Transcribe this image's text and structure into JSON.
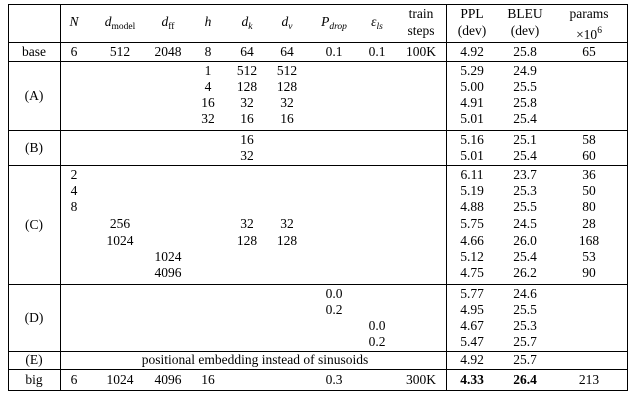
{
  "header": {
    "line1": [
      "",
      "N",
      "d_model",
      "d_ff",
      "h",
      "d_k",
      "d_v",
      "P_drop",
      "ε_ls",
      "train",
      "PPL",
      "BLEU",
      "params"
    ],
    "line2": {
      "train": "steps",
      "ppl": "(dev)",
      "bleu": "(dev)",
      "params": "×10⁶"
    },
    "symbols": {
      "d": "d",
      "model": "model",
      "ff": "ff",
      "k": "k",
      "v": "v",
      "P": "P",
      "drop": "drop",
      "eps": "ε",
      "ls": "ls",
      "params_base": "×10",
      "params_exp": "6"
    }
  },
  "groups": {
    "a": "(A)",
    "b": "(B)",
    "c": "(C)",
    "d": "(D)",
    "e": "(E)"
  },
  "rows": {
    "base": [
      "base",
      "6",
      "512",
      "2048",
      "8",
      "64",
      "64",
      "0.1",
      "0.1",
      "100K",
      "4.92",
      "25.8",
      "65"
    ],
    "a1": [
      "1",
      "512",
      "512",
      "5.29",
      "24.9"
    ],
    "a2": [
      "4",
      "128",
      "128",
      "5.00",
      "25.5"
    ],
    "a3": [
      "16",
      "32",
      "32",
      "4.91",
      "25.8"
    ],
    "a4": [
      "32",
      "16",
      "16",
      "5.01",
      "25.4"
    ],
    "b1": [
      "16",
      "5.16",
      "25.1",
      "58"
    ],
    "b2": [
      "32",
      "5.01",
      "25.4",
      "60"
    ],
    "c1": [
      "2",
      "6.11",
      "23.7",
      "36"
    ],
    "c2": [
      "4",
      "5.19",
      "25.3",
      "50"
    ],
    "c3": [
      "8",
      "4.88",
      "25.5",
      "80"
    ],
    "c4": [
      "256",
      "32",
      "32",
      "5.75",
      "24.5",
      "28"
    ],
    "c5": [
      "1024",
      "128",
      "128",
      "4.66",
      "26.0",
      "168"
    ],
    "c6": [
      "1024",
      "5.12",
      "25.4",
      "53"
    ],
    "c7": [
      "4096",
      "4.75",
      "26.2",
      "90"
    ],
    "d1": [
      "0.0",
      "5.77",
      "24.6"
    ],
    "d2": [
      "0.2",
      "4.95",
      "25.5"
    ],
    "d3": [
      "0.0",
      "4.67",
      "25.3"
    ],
    "d4": [
      "0.2",
      "5.47",
      "25.7"
    ],
    "e": [
      "positional embedding instead of sinusoids",
      "4.92",
      "25.7"
    ],
    "big": [
      "big",
      "6",
      "1024",
      "4096",
      "16",
      "0.3",
      "300K",
      "4.33",
      "26.4",
      "213"
    ]
  }
}
